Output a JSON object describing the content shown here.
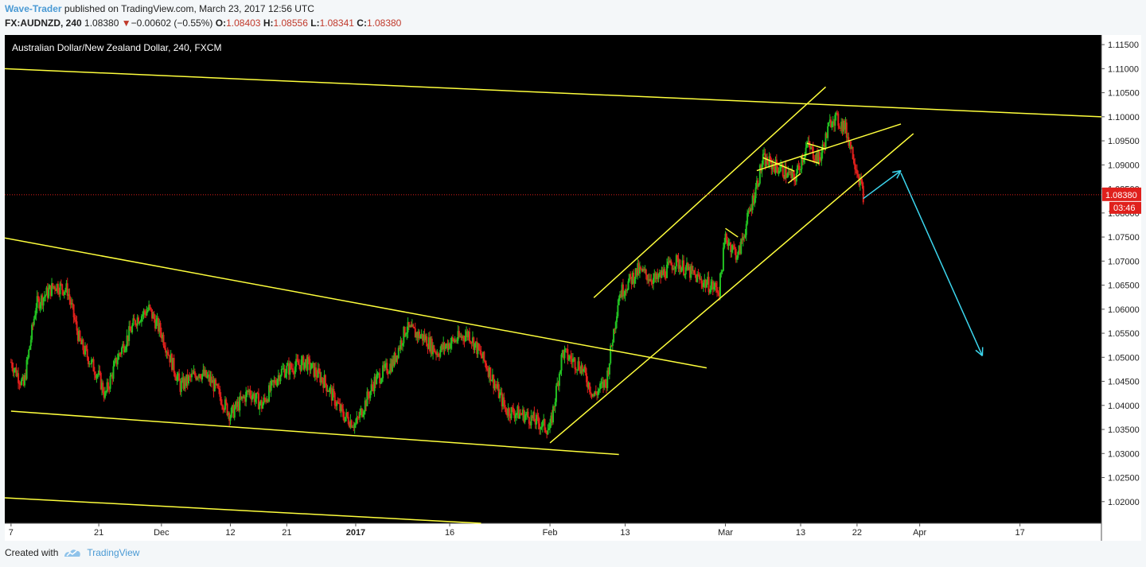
{
  "header": {
    "author": "Wave-Trader",
    "published": " published on TradingView.com, March 23, 2017 12:56 UTC",
    "symbol": "FX:AUDNZD, 240",
    "last": "1.08380",
    "change_arrow": "▼",
    "change": "−0.00602 (−0.55%)",
    "open_label": "O:",
    "open": "1.08403",
    "high_label": "H:",
    "high": "1.08556",
    "low_label": "L:",
    "low": "1.08341",
    "close_label": "C:",
    "close": "1.08380"
  },
  "footer": {
    "created_with": "Created with",
    "brand": "TradingView"
  },
  "colors": {
    "background": "#000000",
    "up": "#22c122",
    "down": "#e0201c",
    "trendline": "#ffff3c",
    "arrow": "#3cd6ee",
    "price_line": "#e0201c",
    "axis_bg": "#ffffff"
  },
  "chart_data": {
    "type": "candlestick",
    "title": "Australian Dollar/New Zealand Dollar, 240, FXCM",
    "y_ticks": [
      "1.11500",
      "1.11000",
      "1.10500",
      "1.10000",
      "1.09500",
      "1.09000",
      "1.08500",
      "1.08000",
      "1.07500",
      "1.07000",
      "1.06500",
      "1.06000",
      "1.05500",
      "1.05000",
      "1.04500",
      "1.04000",
      "1.03500",
      "1.03000",
      "1.02500",
      "1.02000"
    ],
    "ylim": [
      1.0155,
      1.117
    ],
    "x_ticks": [
      {
        "label": "7",
        "x": "2016-11-07"
      },
      {
        "label": "21",
        "x": "2016-11-21"
      },
      {
        "label": "Dec",
        "x": "2016-12-01"
      },
      {
        "label": "12",
        "x": "2016-12-12"
      },
      {
        "label": "21",
        "x": "2016-12-21"
      },
      {
        "label": "2017",
        "x": "2017-01-01",
        "bold": true
      },
      {
        "label": "16",
        "x": "2017-01-16"
      },
      {
        "label": "Feb",
        "x": "2017-02-01"
      },
      {
        "label": "13",
        "x": "2017-02-13"
      },
      {
        "label": "Mar",
        "x": "2017-03-01"
      },
      {
        "label": "13",
        "x": "2017-03-13"
      },
      {
        "label": "22",
        "x": "2017-03-22"
      },
      {
        "label": "Apr",
        "x": "2017-04-01"
      },
      {
        "label": "17",
        "x": "2017-04-17"
      }
    ],
    "x_range": [
      "2016-11-06",
      "2017-04-30"
    ],
    "last_price": {
      "value": 1.0838,
      "label": "1.08380",
      "countdown": "03:46"
    },
    "path_points": [
      [
        "2016-11-07",
        1.049
      ],
      [
        "2016-11-09",
        1.044
      ],
      [
        "2016-11-11",
        1.061
      ],
      [
        "2016-11-14",
        1.065
      ],
      [
        "2016-11-16",
        1.064
      ],
      [
        "2016-11-18",
        1.053
      ],
      [
        "2016-11-21",
        1.046
      ],
      [
        "2016-11-22",
        1.042
      ],
      [
        "2016-11-24",
        1.05
      ],
      [
        "2016-11-27",
        1.058
      ],
      [
        "2016-11-29",
        1.06
      ],
      [
        "2016-12-01",
        1.055
      ],
      [
        "2016-12-04",
        1.044
      ],
      [
        "2016-12-07",
        1.047
      ],
      [
        "2016-12-09",
        1.045
      ],
      [
        "2016-12-12",
        1.038
      ],
      [
        "2016-12-15",
        1.043
      ],
      [
        "2016-12-17",
        1.04
      ],
      [
        "2016-12-20",
        1.047
      ],
      [
        "2016-12-24",
        1.049
      ],
      [
        "2016-12-27",
        1.045
      ],
      [
        "2016-12-30",
        1.038
      ],
      [
        "2017-01-01",
        1.036
      ],
      [
        "2017-01-04",
        1.045
      ],
      [
        "2017-01-07",
        1.049
      ],
      [
        "2017-01-09",
        1.056
      ],
      [
        "2017-01-12",
        1.054
      ],
      [
        "2017-01-14",
        1.051
      ],
      [
        "2017-01-16",
        1.053
      ],
      [
        "2017-01-19",
        1.055
      ],
      [
        "2017-01-22",
        1.048
      ],
      [
        "2017-01-25",
        1.039
      ],
      [
        "2017-01-28",
        1.038
      ],
      [
        "2017-02-01",
        1.035
      ],
      [
        "2017-02-03",
        1.051
      ],
      [
        "2017-02-06",
        1.048
      ],
      [
        "2017-02-08",
        1.042
      ],
      [
        "2017-02-10",
        1.045
      ],
      [
        "2017-02-12",
        1.063
      ],
      [
        "2017-02-15",
        1.068
      ],
      [
        "2017-02-18",
        1.066
      ],
      [
        "2017-02-21",
        1.07
      ],
      [
        "2017-02-23",
        1.068
      ],
      [
        "2017-02-25",
        1.066
      ],
      [
        "2017-02-28",
        1.064
      ],
      [
        "2017-03-01",
        1.075
      ],
      [
        "2017-03-03",
        1.071
      ],
      [
        "2017-03-07",
        1.091
      ],
      [
        "2017-03-10",
        1.089
      ],
      [
        "2017-03-12",
        1.087
      ],
      [
        "2017-03-14",
        1.094
      ],
      [
        "2017-03-16",
        1.091
      ],
      [
        "2017-03-18",
        1.1
      ],
      [
        "2017-03-20",
        1.098
      ],
      [
        "2017-03-21",
        1.094
      ],
      [
        "2017-03-22",
        1.089
      ],
      [
        "2017-03-23",
        1.0838
      ]
    ],
    "candle_interval_hours": 4,
    "trendlines": [
      {
        "from": [
          "2016-11-06",
          1.11
        ],
        "to": [
          "2017-04-30",
          1.1
        ]
      },
      {
        "from": [
          "2016-11-06",
          1.0748
        ],
        "to": [
          "2017-02-26",
          1.0478
        ]
      },
      {
        "from": [
          "2016-11-07",
          1.0388
        ],
        "to": [
          "2017-02-12",
          1.0298
        ]
      },
      {
        "from": [
          "2016-11-06",
          1.0208
        ],
        "to": [
          "2017-01-21",
          1.0155
        ]
      },
      {
        "from": [
          "2017-02-01",
          1.0322
        ],
        "to": [
          "2017-03-31",
          1.0965
        ]
      },
      {
        "from": [
          "2017-02-08",
          1.0624
        ],
        "to": [
          "2017-03-17",
          1.1062
        ]
      },
      {
        "from": [
          "2017-03-06",
          1.0888
        ],
        "to": [
          "2017-03-29",
          1.0985
        ]
      },
      {
        "from": [
          "2017-03-07",
          1.0915
        ],
        "to": [
          "2017-03-12",
          1.0887
        ]
      },
      {
        "from": [
          "2017-03-11",
          1.0862
        ],
        "to": [
          "2017-03-13",
          1.0882
        ]
      },
      {
        "from": [
          "2017-03-14",
          1.0945
        ],
        "to": [
          "2017-03-17",
          1.0933
        ]
      },
      {
        "from": [
          "2017-03-13",
          1.0915
        ],
        "to": [
          "2017-03-16",
          1.0903
        ]
      },
      {
        "from": [
          "2017-03-01",
          1.0768
        ],
        "to": [
          "2017-03-03",
          1.075
        ]
      }
    ],
    "annotations": [
      {
        "type": "arrow",
        "from": [
          "2017-03-23",
          1.083
        ],
        "to": [
          "2017-03-29",
          1.0888
        ]
      },
      {
        "type": "arrow",
        "from": [
          "2017-03-29",
          1.0883
        ],
        "to": [
          "2017-04-11",
          1.0503
        ]
      }
    ],
    "grid": false,
    "legend": "none"
  }
}
